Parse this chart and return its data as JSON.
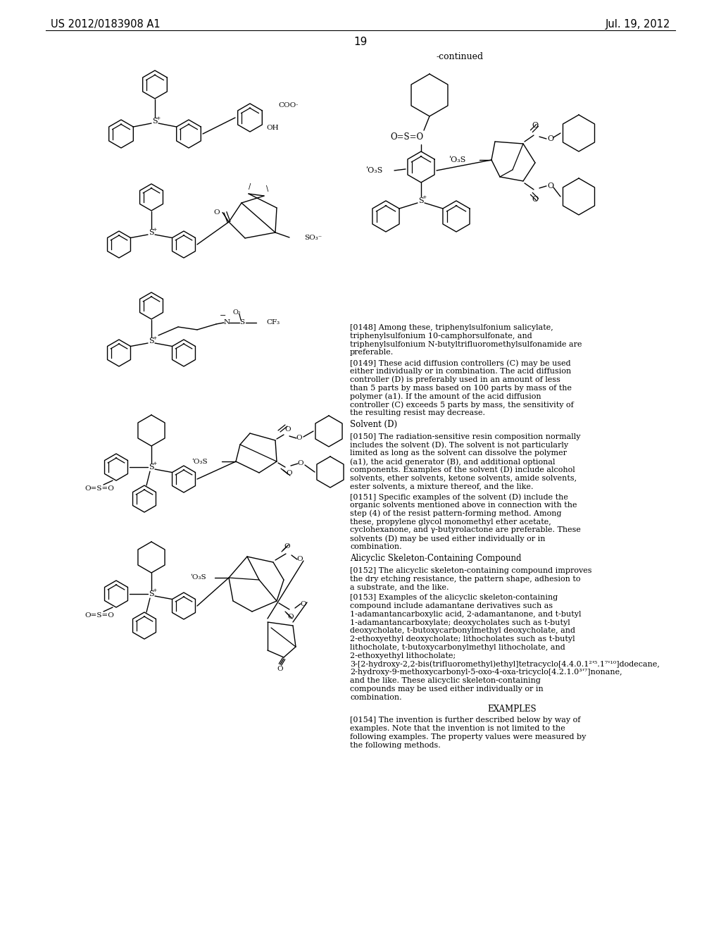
{
  "patent_number": "US 2012/0183908 A1",
  "date": "Jul. 19, 2012",
  "page_number": "19",
  "continued_label": "-continued",
  "background_color": "#ffffff",
  "text_color": "#000000",
  "paragraphs_text": [
    {
      "tag": "[0148]",
      "indent": true,
      "text": "Among these, triphenylsulfonium salicylate, triphenylsulfonium 10-camphorsulfonate, and triphenylsulfonium N-butyltrifluoromethylsulfonamide are preferable."
    },
    {
      "tag": "[0149]",
      "indent": true,
      "text": "These acid diffusion controllers (C) may be used either individually or in combination. The acid diffusion controller (D) is preferably used in an amount of less than 5 parts by mass based on 100 parts by mass of the polymer (a1). If the amount of the acid diffusion controller (C) exceeds 5 parts by mass, the sensitivity of the resulting resist may decrease."
    },
    {
      "tag": null,
      "section": "Solvent (D)"
    },
    {
      "tag": "[0150]",
      "indent": true,
      "text": "The radiation-sensitive resin composition normally includes the solvent (D). The solvent is not particularly limited as long as the solvent can dissolve the polymer (a1), the acid generator (B), and additional optional components. Examples of the solvent (D) include alcohol solvents, ether solvents, ketone solvents, amide solvents, ester solvents, a mixture thereof, and the like."
    },
    {
      "tag": "[0151]",
      "indent": true,
      "text": "Specific examples of the solvent (D) include the organic solvents mentioned above in connection with the step (4) of the resist pattern-forming method. Among these, propylene glycol monomethyl ether acetate, cyclohexanone, and γ-butyrolactone are preferable. These solvents (D) may be used either individually or in combination."
    },
    {
      "tag": null,
      "section": "Alicyclic Skeleton-Containing Compound"
    },
    {
      "tag": "[0152]",
      "indent": true,
      "text": "The alicyclic skeleton-containing compound improves the dry etching resistance, the pattern shape, adhesion to a substrate, and the like."
    },
    {
      "tag": "[0153]",
      "indent": true,
      "text": "Examples of the alicyclic skeleton-containing compound include adamantane derivatives such as 1-adamantancarboxylic acid, 2-adamantanone, and t-butyl 1-adamantancarboxylate; deoxycholates such as t-butyl deoxycholate, t-butoxycarbonylmethyl deoxycholate, and 2-ethoxyethyl deoxycholate; lithocholates such as t-butyl lithocholate, t-butoxycarbonylmethyl lithocholate, and 2-ethoxyethyl lithocholate; 3-[2-hydroxy-2,2-bis(trifluoromethyl)ethyl]tetracyclo[4.4.0.1²'⁵.1⁷'¹⁰]dodecane,          2-hydroxy-9-methoxycarbonyl-5-oxo-4-oxa-tricyclo[4.2.1.0³'⁷]nonane, and the like. These alicyclic skeleton-containing compounds may be used either individually or in combination."
    },
    {
      "tag": null,
      "section_center": "EXAMPLES"
    },
    {
      "tag": "[0154]",
      "indent": true,
      "text": "The invention is further described below by way of examples. Note that the invention is not limited to the following examples. The property values were measured by the following methods."
    }
  ]
}
